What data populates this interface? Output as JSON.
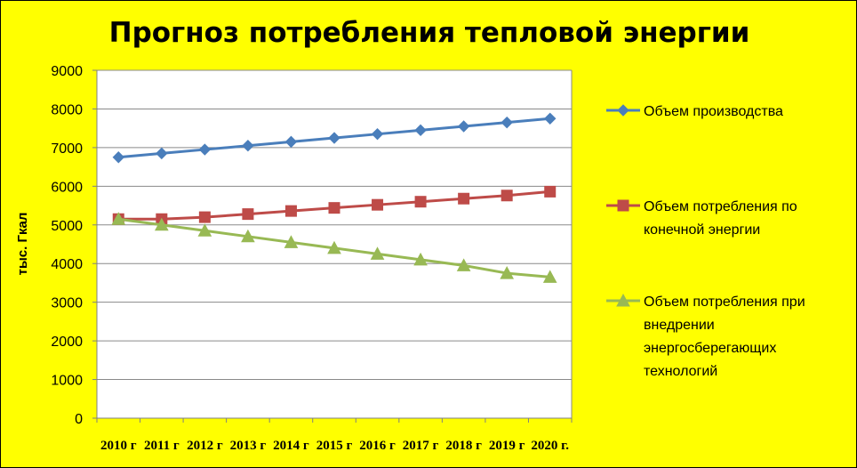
{
  "chart_data": {
    "type": "line",
    "title": "Прогноз потребления тепловой энергии",
    "ylabel": "тыс. Гкал",
    "xlabel": "",
    "categories": [
      "2010 г",
      "2011 г",
      "2012 г",
      "2013 г",
      "2014 г",
      "2015 г",
      "2016 г",
      "2017 г",
      "2018 г",
      "2019 г",
      "2020 г."
    ],
    "ylim": [
      0,
      9000
    ],
    "yticks": [
      0,
      1000,
      2000,
      3000,
      4000,
      5000,
      6000,
      7000,
      8000,
      9000
    ],
    "grid": true,
    "legend_position": "right",
    "series": [
      {
        "name": "Объем производства",
        "legend_lines": [
          "Объем производства"
        ],
        "color": "#4a7ebb",
        "marker": "diamond",
        "values": [
          6750,
          6850,
          6950,
          7050,
          7150,
          7250,
          7350,
          7450,
          7550,
          7650,
          7750
        ]
      },
      {
        "name": "Объем потребления по конечной энергии",
        "legend_lines": [
          "Объем потребления по",
          "конечной энергии"
        ],
        "color": "#be4b48",
        "marker": "square",
        "values": [
          5150,
          5150,
          5200,
          5280,
          5360,
          5440,
          5520,
          5600,
          5680,
          5760,
          5860
        ]
      },
      {
        "name": "Объем потребления при внедрении энергосберегающих технологий",
        "legend_lines": [
          "Объем потребления при",
          "внедрении",
          "энергосберегающих",
          "технологий"
        ],
        "color": "#98b954",
        "marker": "triangle",
        "values": [
          5150,
          5000,
          4850,
          4700,
          4550,
          4400,
          4250,
          4100,
          3950,
          3750,
          3650
        ]
      }
    ]
  }
}
